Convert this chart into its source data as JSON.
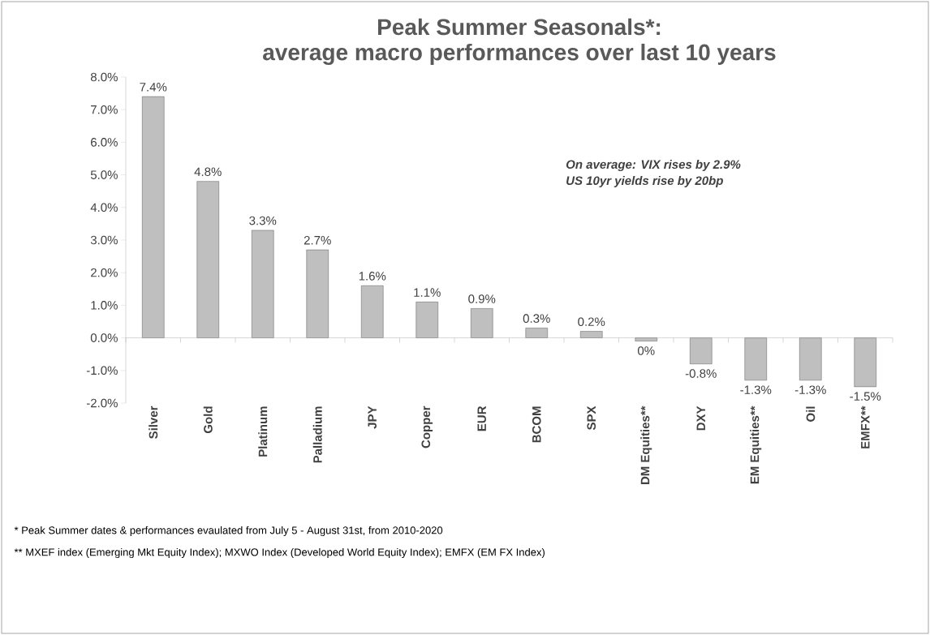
{
  "chart_data": {
    "type": "bar",
    "title": "Peak Summer Seasonals*:",
    "subtitle": "average macro performances over last 10 years",
    "categories": [
      "Silver",
      "Gold",
      "Platinum",
      "Palladium",
      "JPY",
      "Copper",
      "EUR",
      "BCOM",
      "SPX",
      "DM Equities**",
      "DXY",
      "EM  Equities**",
      "Oil",
      "EMFX**"
    ],
    "values": [
      7.4,
      4.8,
      3.3,
      2.7,
      1.6,
      1.1,
      0.9,
      0.3,
      0.2,
      -0.1,
      -0.8,
      -1.3,
      -1.3,
      -1.5
    ],
    "value_labels": [
      "7.4%",
      "4.8%",
      "3.3%",
      "2.7%",
      "1.6%",
      "1.1%",
      "0.9%",
      "0.3%",
      "0.2%",
      "0%",
      "-0.8%",
      "-1.3%",
      "-1.3%",
      "-1.5%"
    ],
    "color": "#bfbfbf",
    "ylim": [
      -2,
      8
    ],
    "yticks": [
      {
        "value": -2,
        "label": "-2.0%"
      },
      {
        "value": -1,
        "label": "-1.0%"
      },
      {
        "value": 0,
        "label": "0.0%"
      },
      {
        "value": 1,
        "label": "1.0%"
      },
      {
        "value": 2,
        "label": "2.0%"
      },
      {
        "value": 3,
        "label": "3.0%"
      },
      {
        "value": 4,
        "label": "4.0%"
      },
      {
        "value": 5,
        "label": "5.0%"
      },
      {
        "value": 6,
        "label": "6.0%"
      },
      {
        "value": 7,
        "label": "7.0%"
      },
      {
        "value": 8,
        "label": "8.0%"
      }
    ],
    "annotations": [
      "On average: VIX rises by 2.9%",
      "US 10yr yields rise by 20bp",
      "* Peak Summer dates & performances evaulated  from July 5 - August 31st, from 2010-2020",
      "** MXEF index (Emerging Mkt Equity Index); MXWO Index (Developed World Equity Index); EMFX (EM FX Index)"
    ]
  }
}
